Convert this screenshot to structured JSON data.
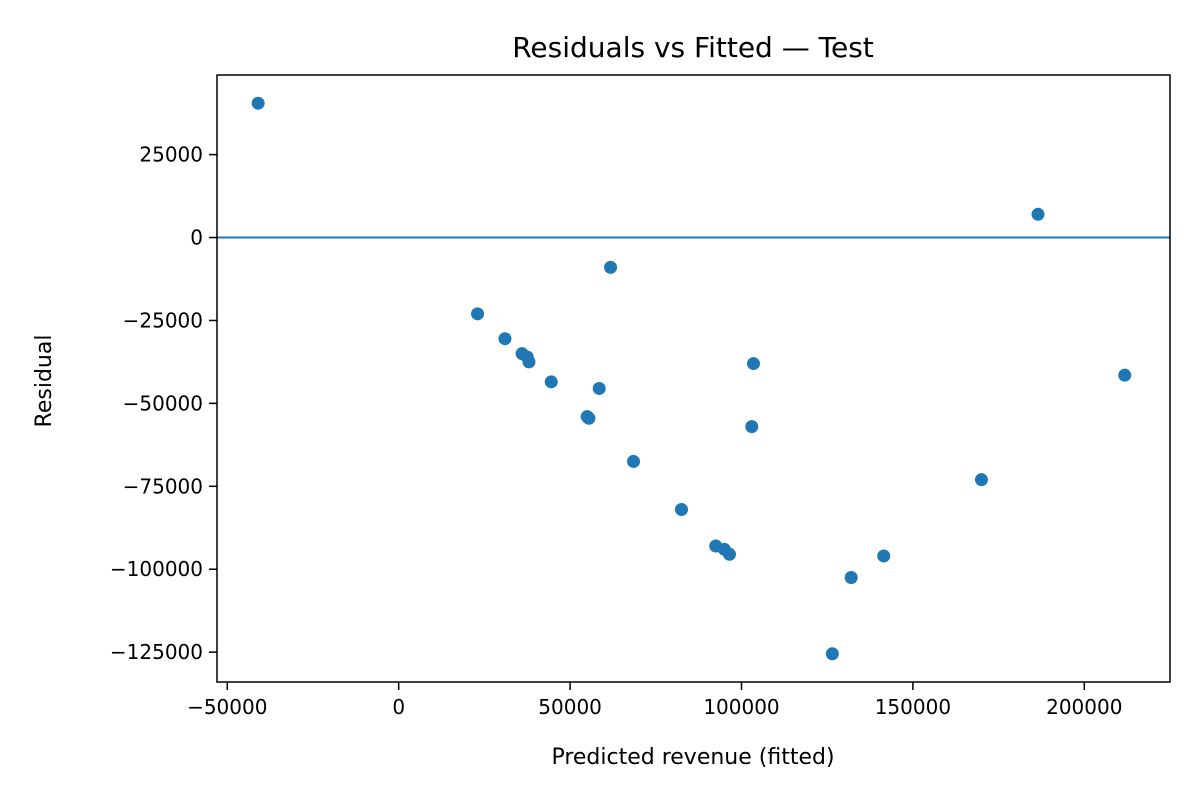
{
  "chart_data": {
    "type": "scatter",
    "title": "Residuals vs Fitted — Test",
    "xlabel": "Predicted revenue (fitted)",
    "ylabel": "Residual",
    "xlim": [
      -53000,
      225000
    ],
    "ylim": [
      -134000,
      49000
    ],
    "xticks": [
      -50000,
      0,
      50000,
      100000,
      150000,
      200000
    ],
    "xtick_labels": [
      "−50000",
      "0",
      "50000",
      "100000",
      "150000",
      "200000"
    ],
    "yticks": [
      25000,
      0,
      -25000,
      -50000,
      -75000,
      -100000,
      -125000
    ],
    "ytick_labels": [
      "25000",
      "0",
      "−25000",
      "−50000",
      "−75000",
      "−100000",
      "−125000"
    ],
    "grid": false,
    "reference_line_y": 0,
    "colors": {
      "points": "#1f77b4",
      "reference_line": "#1f77b4"
    },
    "series": [
      {
        "points": [
          [
            -41000,
            40500
          ],
          [
            23000,
            -23000
          ],
          [
            31000,
            -30500
          ],
          [
            36000,
            -35000
          ],
          [
            37500,
            -36000
          ],
          [
            38000,
            -37500
          ],
          [
            44500,
            -43500
          ],
          [
            55000,
            -54000
          ],
          [
            55500,
            -54500
          ],
          [
            58500,
            -45500
          ],
          [
            61800,
            -9000
          ],
          [
            68500,
            -67500
          ],
          [
            82500,
            -82000
          ],
          [
            92500,
            -93000
          ],
          [
            95000,
            -94000
          ],
          [
            96500,
            -95500
          ],
          [
            103000,
            -57000
          ],
          [
            103500,
            -38000
          ],
          [
            126500,
            -125500
          ],
          [
            132000,
            -102500
          ],
          [
            141500,
            -96000
          ],
          [
            170000,
            -73000
          ],
          [
            186500,
            7000
          ],
          [
            211800,
            -41500
          ]
        ]
      }
    ]
  }
}
